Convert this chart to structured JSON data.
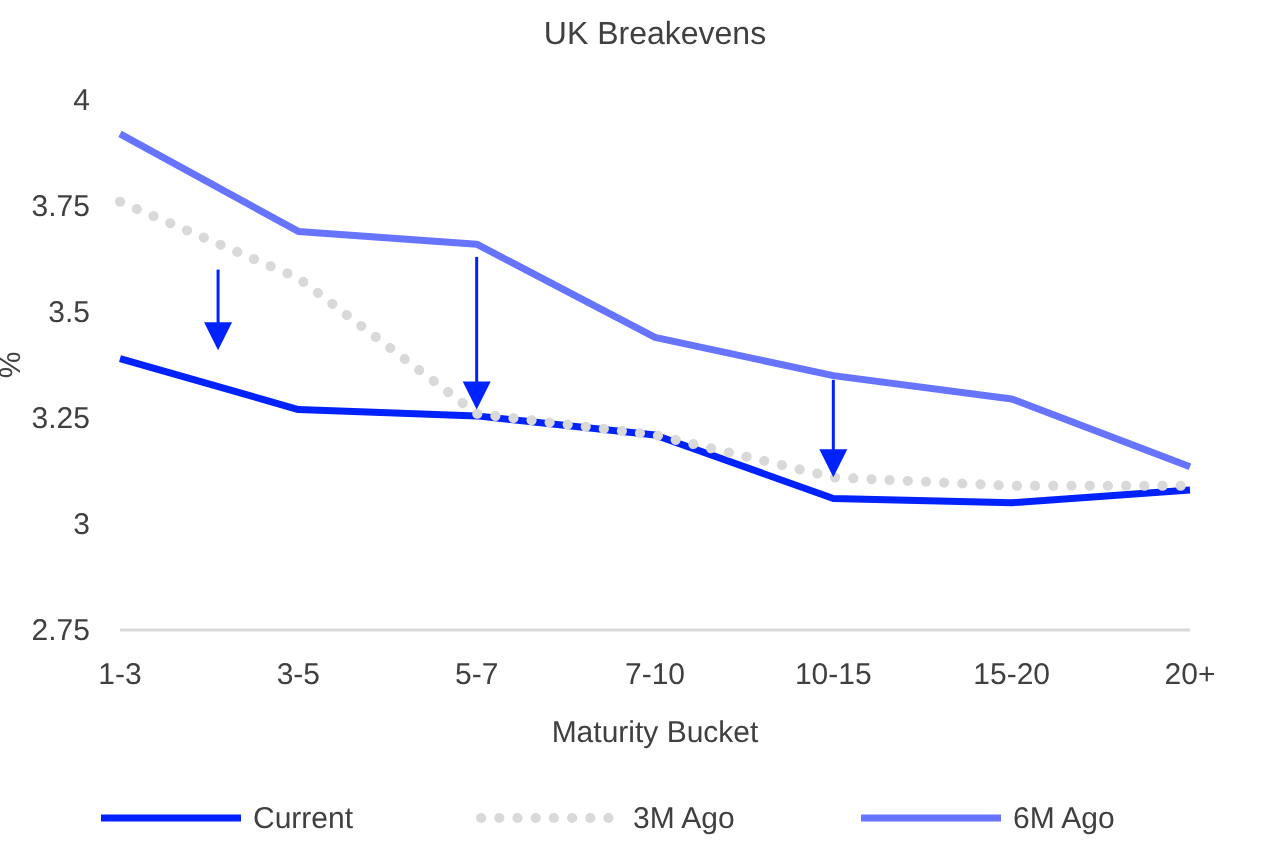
{
  "chart_data": {
    "type": "line",
    "title": "UK Breakevens",
    "xlabel": "Maturity Bucket",
    "ylabel": "%",
    "categories": [
      "1-3",
      "3-5",
      "5-7",
      "7-10",
      "10-15",
      "15-20",
      "20+"
    ],
    "series": [
      {
        "name": "Current",
        "color": "#0022ff",
        "values": [
          3.39,
          3.27,
          3.255,
          3.21,
          3.06,
          3.05,
          3.08
        ]
      },
      {
        "name": "3M Ago",
        "color": "#d9d9d9",
        "line_style": "dotted",
        "values": [
          3.76,
          3.58,
          3.26,
          3.21,
          3.11,
          3.09,
          3.09
        ]
      },
      {
        "name": "6M Ago",
        "color": "#6674ff",
        "values": [
          3.92,
          3.69,
          3.66,
          3.44,
          3.35,
          3.295,
          3.135
        ]
      }
    ],
    "ylim": [
      2.75,
      4
    ],
    "yticks": [
      2.75,
      3,
      3.25,
      3.5,
      3.75,
      4
    ],
    "grid": false,
    "legend": "bottom",
    "marker": "none",
    "line_style": "solid"
  }
}
